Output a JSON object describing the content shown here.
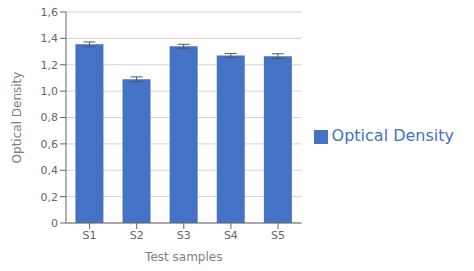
{
  "chart_data": {
    "type": "bar",
    "categories": [
      "S1",
      "S2",
      "S3",
      "S4",
      "S5"
    ],
    "series": [
      {
        "name": "Optical Density",
        "color": "#4472C4",
        "values": [
          1.355,
          1.09,
          1.34,
          1.27,
          1.265
        ],
        "errors": [
          0.018,
          0.018,
          0.015,
          0.015,
          0.018
        ]
      }
    ],
    "xlabel": "Test samples",
    "ylabel": "Optical Density",
    "ylim": [
      0,
      1.6
    ],
    "yticks": [
      0,
      {
        "value": 0.2,
        "label": "0,2"
      },
      {
        "value": 0.4,
        "label": "0,4"
      },
      {
        "value": 0.6,
        "label": "0,6"
      },
      {
        "value": 0.8,
        "label": "0,8"
      },
      {
        "value": 1.0,
        "label": "1,0"
      },
      {
        "value": 1.2,
        "label": "1,2"
      },
      {
        "value": 1.4,
        "label": "1,4"
      },
      {
        "value": 1.6,
        "label": "1,6"
      }
    ],
    "grid": true,
    "legend": "right"
  }
}
